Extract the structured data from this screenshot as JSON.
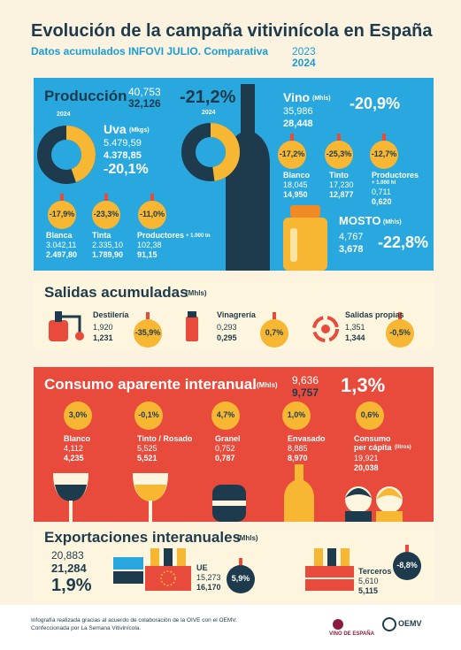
{
  "header": {
    "title": "Evolución de la campaña vitivinícola en España",
    "subtitle": "Datos acumulados INFOVI JULIO. Comparativa",
    "years": [
      "2023",
      "2024"
    ]
  },
  "produccion": {
    "title": "Producción",
    "prev": "40,753",
    "curr": "32,126",
    "change": "-21,2%",
    "uva": {
      "year": "2024",
      "title": "Uva",
      "unit": "(Mkgs)",
      "prev": "5.479,59",
      "curr": "4.378,85",
      "change": "-20,1%",
      "items": [
        {
          "label": "Blanca",
          "prev": "3.042,11",
          "curr": "2.497,80",
          "change": "-17,9%"
        },
        {
          "label": "Tinta",
          "prev": "2.335,10",
          "curr": "1.789,90",
          "change": "-23,3%"
        },
        {
          "label": "Productores",
          "note": "+ 1.000 tn",
          "prev": "102,38",
          "curr": "91,15",
          "change": "-11,0%"
        }
      ]
    },
    "vino": {
      "year": "2024",
      "title": "Vino",
      "unit": "(Mhls)",
      "prev": "35,986",
      "curr": "28,448",
      "change": "-20,9%",
      "items": [
        {
          "label": "Blanco",
          "prev": "18,045",
          "curr": "14,950",
          "change": "-17,2%"
        },
        {
          "label": "Tinto",
          "prev": "17,230",
          "curr": "12,877",
          "change": "-25,3%"
        },
        {
          "label": "Productores",
          "note": "+ 1.000 hl",
          "prev": "0,711",
          "curr": "0,620",
          "change": "-12,7%"
        }
      ]
    },
    "mosto": {
      "title": "MOSTO",
      "unit": "(Mhls)",
      "prev": "4,767",
      "curr": "3,678",
      "change": "-22,8%"
    }
  },
  "salidas": {
    "title": "Salidas acumuladas",
    "unit": "(Mhls)",
    "items": [
      {
        "label": "Destilería",
        "prev": "1,920",
        "curr": "1,231",
        "change": "-35,9%"
      },
      {
        "label": "Vinagrería",
        "prev": "0,293",
        "curr": "0,295",
        "change": "0,7%"
      },
      {
        "label": "Salidas propias",
        "prev": "1,351",
        "curr": "1,344",
        "change": "-0,5%"
      }
    ]
  },
  "consumo": {
    "title": "Consumo aparente interanual",
    "unit": "(Mhls)",
    "prev": "9,636",
    "curr": "9,757",
    "change": "1,3%",
    "items": [
      {
        "label": "Blanco",
        "prev": "4,112",
        "curr": "4,235",
        "change": "3,0%"
      },
      {
        "label": "Tinto / Rosado",
        "prev": "5,525",
        "curr": "5,521",
        "change": "-0,1%"
      },
      {
        "label": "Granel",
        "prev": "0,752",
        "curr": "0,787",
        "change": "4,7%"
      },
      {
        "label": "Envasado",
        "prev": "8,885",
        "curr": "8,970",
        "change": "1,0%"
      },
      {
        "label": "Consumo per cápita",
        "note": "(litros)",
        "prev": "19,921",
        "curr": "20,038",
        "change": "0,6%"
      }
    ]
  },
  "exportaciones": {
    "title": "Exportaciones interanuales",
    "unit": "(Mhls)",
    "prev": "20,883",
    "curr": "21,284",
    "change": "1,9%",
    "items": [
      {
        "label": "UE",
        "prev": "15,273",
        "curr": "16,170",
        "change": "5,9%"
      },
      {
        "label": "Terceros",
        "prev": "5,610",
        "curr": "5,115",
        "change": "-8,8%"
      }
    ]
  },
  "footer": {
    "lines": [
      "Infografía realizada gracias al acuerdo de colaboración de la OIVE con el OEMV.",
      "Confeccionada por La Semana Vitivinícola."
    ],
    "logos": [
      "VINO DE ESPAÑA",
      "OEMV"
    ]
  }
}
